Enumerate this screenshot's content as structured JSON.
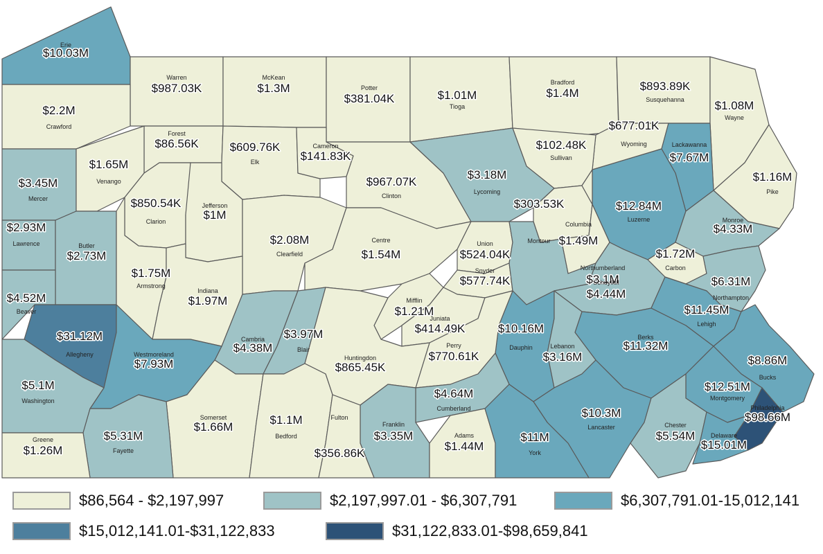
{
  "colors": {
    "c1": "#eef0d9",
    "c2": "#9fc3c6",
    "c3": "#6aa8bc",
    "c4": "#4d7f9d",
    "c5": "#2d5277",
    "border": "#5a5a5a"
  },
  "legend": [
    {
      "label": "$86,564 - $2,197,997",
      "color": "#eef0d9"
    },
    {
      "label": "$2,197,997.01 - $6,307,791",
      "color": "#9fc3c6"
    },
    {
      "label": "$6,307,791.01-15,012,141",
      "color": "#6aa8bc"
    },
    {
      "label": "$15,012,141.01-$31,122,833",
      "color": "#4d7f9d"
    },
    {
      "label": "$31,122,833.01-$98,659,841",
      "color": "#2d5277"
    }
  ],
  "counties": [
    {
      "name": "Erie",
      "value": "$10.03M",
      "cls": 3
    },
    {
      "name": "Warren",
      "value": "$987.03K",
      "cls": 1
    },
    {
      "name": "McKean",
      "value": "$1.3M",
      "cls": 1
    },
    {
      "name": "Potter",
      "value": "$381.04K",
      "cls": 1
    },
    {
      "name": "Tioga",
      "value": "$1.01M",
      "cls": 1
    },
    {
      "name": "Bradford",
      "value": "$1.4M",
      "cls": 1
    },
    {
      "name": "Susquehanna",
      "value": "$893.89K",
      "cls": 1
    },
    {
      "name": "Wayne",
      "value": "$1.08M",
      "cls": 1
    },
    {
      "name": "Crawford",
      "value": "$2.2M",
      "cls": 1
    },
    {
      "name": "Forest",
      "value": "$86.56K",
      "cls": 1
    },
    {
      "name": "Elk",
      "value": "$609.76K",
      "cls": 1
    },
    {
      "name": "Cameron",
      "value": "$141.83K",
      "cls": 1
    },
    {
      "name": "Wyoming",
      "value": "$677.01K",
      "cls": 1
    },
    {
      "name": "Sullivan",
      "value": "$102.48K",
      "cls": 1
    },
    {
      "name": "Lackawanna",
      "value": "$7.67M",
      "cls": 3
    },
    {
      "name": "Pike",
      "value": "$1.16M",
      "cls": 1
    },
    {
      "name": "Mercer",
      "value": "$3.45M",
      "cls": 2
    },
    {
      "name": "Venango",
      "value": "$1.65M",
      "cls": 1
    },
    {
      "name": "Clinton",
      "value": "$967.07K",
      "cls": 1
    },
    {
      "name": "Lycoming",
      "value": "$3.18M",
      "cls": 2
    },
    {
      "name": "Luzerne",
      "value": "$12.84M",
      "cls": 3
    },
    {
      "name": "Monroe",
      "value": "$4.33M",
      "cls": 2
    },
    {
      "name": "Clarion",
      "value": "$850.54K",
      "cls": 1
    },
    {
      "name": "Jefferson",
      "value": "$1M",
      "cls": 1
    },
    {
      "name": "Lawrence",
      "value": "$2.93M",
      "cls": 2
    },
    {
      "name": "Butler",
      "value": "$2.73M",
      "cls": 2
    },
    {
      "name": "Clearfield",
      "value": "$2.08M",
      "cls": 1
    },
    {
      "name": "Centre",
      "value": "$1.54M",
      "cls": 1
    },
    {
      "name": "Union",
      "value": "$524.04K",
      "cls": 1
    },
    {
      "name": "Montour",
      "value": "$303.53K",
      "cls": 1
    },
    {
      "name": "Columbia",
      "value": "$1.49M",
      "cls": 1
    },
    {
      "name": "Carbon",
      "value": "$1.72M",
      "cls": 1
    },
    {
      "name": "Armstrong",
      "value": "$1.75M",
      "cls": 1
    },
    {
      "name": "Indiana",
      "value": "$1.97M",
      "cls": 1
    },
    {
      "name": "Snyder",
      "value": "$577.74K",
      "cls": 1
    },
    {
      "name": "Northumberland",
      "value": "$3.1M",
      "cls": 2
    },
    {
      "name": "Schuylkill",
      "value": "$4.44M",
      "cls": 2
    },
    {
      "name": "Northampton",
      "value": "$6.31M",
      "cls": 2
    },
    {
      "name": "Beaver",
      "value": "$4.52M",
      "cls": 2
    },
    {
      "name": "Allegheny",
      "value": "$31.12M",
      "cls": 4
    },
    {
      "name": "Mifflin",
      "value": "$1.21M",
      "cls": 1
    },
    {
      "name": "Juniata",
      "value": "$414.49K",
      "cls": 1
    },
    {
      "name": "Lehigh",
      "value": "$11.45M",
      "cls": 3
    },
    {
      "name": "Cambria",
      "value": "$4.38M",
      "cls": 2
    },
    {
      "name": "Blair",
      "value": "$3.97M",
      "cls": 2
    },
    {
      "name": "Dauphin",
      "value": "$10.16M",
      "cls": 3
    },
    {
      "name": "Berks",
      "value": "$11.32M",
      "cls": 3
    },
    {
      "name": "Westmoreland",
      "value": "$7.93M",
      "cls": 3
    },
    {
      "name": "Lebanon",
      "value": "$3.16M",
      "cls": 2
    },
    {
      "name": "Perry",
      "value": "$770.61K",
      "cls": 1
    },
    {
      "name": "Huntingdon",
      "value": "$865.45K",
      "cls": 1
    },
    {
      "name": "Bucks",
      "value": "$8.86M",
      "cls": 3
    },
    {
      "name": "Washington",
      "value": "$5.1M",
      "cls": 2
    },
    {
      "name": "Montgomery",
      "value": "$12.51M",
      "cls": 3
    },
    {
      "name": "Cumberland",
      "value": "$4.64M",
      "cls": 2
    },
    {
      "name": "Philadelphia",
      "value": "$98.66M",
      "cls": 5
    },
    {
      "name": "Somerset",
      "value": "$1.66M",
      "cls": 1
    },
    {
      "name": "Bedford",
      "value": "$1.1M",
      "cls": 1
    },
    {
      "name": "Lancaster",
      "value": "$10.3M",
      "cls": 3
    },
    {
      "name": "Franklin",
      "value": "$3.35M",
      "cls": 2
    },
    {
      "name": "Chester",
      "value": "$5.54M",
      "cls": 2
    },
    {
      "name": "Fayette",
      "value": "$5.31M",
      "cls": 2
    },
    {
      "name": "Adams",
      "value": "$1.44M",
      "cls": 1
    },
    {
      "name": "York",
      "value": "$11M",
      "cls": 3
    },
    {
      "name": "Greene",
      "value": "$1.26M",
      "cls": 1
    },
    {
      "name": "Fulton",
      "value": "$356.86K",
      "cls": 1
    },
    {
      "name": "Delaware",
      "value": "$15.01M",
      "cls": 3
    }
  ]
}
